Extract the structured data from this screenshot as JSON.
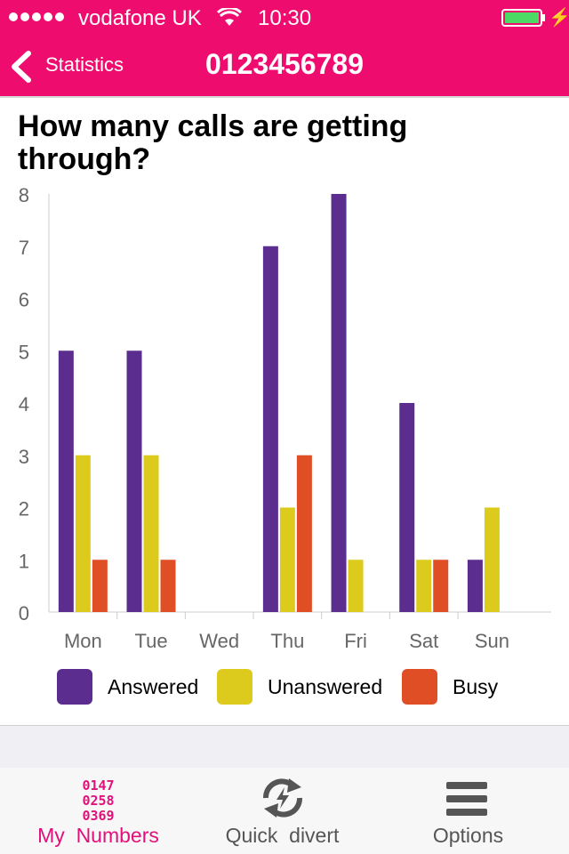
{
  "status_bar": {
    "carrier": "vodafone UK",
    "time": "10:30"
  },
  "nav": {
    "back_label": "Statistics",
    "title": "0123456789"
  },
  "question": "How many calls are getting through?",
  "colors": {
    "brand": "#ee0c6f",
    "answered": "#5b2d8e",
    "unanswered": "#dccb1c",
    "busy": "#e04e25"
  },
  "chart_data": {
    "type": "bar",
    "categories": [
      "Mon",
      "Tue",
      "Wed",
      "Thu",
      "Fri",
      "Sat",
      "Sun"
    ],
    "series": [
      {
        "name": "Answered",
        "color": "#5b2d8e",
        "values": [
          5,
          5,
          0,
          7,
          8,
          4,
          1
        ]
      },
      {
        "name": "Unanswered",
        "color": "#dccb1c",
        "values": [
          3,
          3,
          0,
          2,
          1,
          1,
          2
        ]
      },
      {
        "name": "Busy",
        "color": "#e04e25",
        "values": [
          1,
          1,
          0,
          3,
          0,
          1,
          0
        ]
      }
    ],
    "ylim": [
      0,
      8
    ],
    "yticks": [
      "0",
      "1",
      "2",
      "3",
      "4",
      "5",
      "6",
      "7",
      "8"
    ],
    "legend": "bottom"
  },
  "tabs": [
    {
      "label": "My  Numbers",
      "icon": "numbers-icon",
      "active": true,
      "icon_lines": [
        "0147",
        "0258",
        "0369"
      ]
    },
    {
      "label": "Quick  divert",
      "icon": "divert-icon",
      "active": false
    },
    {
      "label": "Options",
      "icon": "menu-icon",
      "active": false
    }
  ]
}
